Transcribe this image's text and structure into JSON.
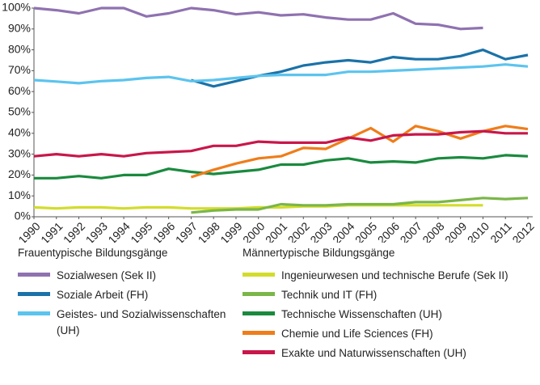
{
  "chart_data": {
    "type": "line",
    "x": [
      1990,
      1991,
      1992,
      1993,
      1994,
      1995,
      1996,
      1997,
      1998,
      1999,
      2000,
      2001,
      2002,
      2003,
      2004,
      2005,
      2006,
      2007,
      2008,
      2009,
      2010,
      2011,
      2012
    ],
    "xlim": [
      1990,
      2012
    ],
    "xticks": [
      1990,
      1991,
      1992,
      1993,
      1994,
      1995,
      1996,
      1997,
      1998,
      1999,
      2000,
      2001,
      2002,
      2003,
      2004,
      2005,
      2006,
      2007,
      2008,
      2009,
      2010,
      2011,
      2012
    ],
    "ylim": [
      0,
      100
    ],
    "yticks": [
      {
        "value": 0,
        "label": "0%"
      },
      {
        "value": 10,
        "label": "10%"
      },
      {
        "value": 20,
        "label": "20%"
      },
      {
        "value": 30,
        "label": "30%"
      },
      {
        "value": 40,
        "label": "40%"
      },
      {
        "value": 50,
        "label": "50%"
      },
      {
        "value": 60,
        "label": "60%"
      },
      {
        "value": 70,
        "label": "70%"
      },
      {
        "value": 80,
        "label": "80%"
      },
      {
        "value": 90,
        "label": "90%"
      },
      {
        "value": 100,
        "label": "100%"
      }
    ],
    "grid": false,
    "legend_groups": [
      "Frauentypische Bildungsgänge",
      "Männertypische Bildungsgänge"
    ],
    "series": [
      {
        "name": "Sozialwesen (Sek II)",
        "color": "#8f72b0",
        "values": [
          100,
          99,
          97.5,
          100,
          100,
          96,
          97.5,
          100,
          99,
          97,
          98,
          96.5,
          97,
          95.5,
          94.5,
          94.5,
          97.5,
          92.5,
          92,
          90,
          90.5,
          null,
          null
        ]
      },
      {
        "name": "Soziale Arbeit (FH)",
        "color": "#1b72a8",
        "values": [
          null,
          null,
          null,
          null,
          null,
          null,
          null,
          65.5,
          62.5,
          65,
          67.5,
          69.5,
          72.5,
          74,
          75,
          74,
          76.5,
          75.5,
          75.5,
          77,
          80,
          75.5,
          77.5
        ]
      },
      {
        "name": "Geistes- und Sozialwissenschaften (UH)",
        "color": "#5cc4ee",
        "values": [
          65.5,
          64.8,
          64,
          65,
          65.5,
          66.5,
          67,
          65,
          65.5,
          66.5,
          67.5,
          68,
          68,
          68,
          69.5,
          69.5,
          70,
          70.5,
          71,
          71.5,
          72,
          73,
          72
        ]
      },
      {
        "name": "Ingenieurwesen und technische Berufe (Sek II)",
        "color": "#d3dc2b",
        "values": [
          4.5,
          4,
          4.5,
          4.5,
          4,
          4.5,
          4.5,
          4,
          4,
          4,
          4.5,
          4.5,
          5,
          5,
          5.5,
          5.5,
          5.5,
          5.5,
          5.5,
          5.5,
          5.5,
          null,
          null
        ]
      },
      {
        "name": "Technik und IT (FH)",
        "color": "#7ab648",
        "values": [
          null,
          null,
          null,
          null,
          null,
          null,
          null,
          2,
          3,
          3.5,
          3.5,
          6,
          5.5,
          5.5,
          6,
          6,
          6,
          7,
          7,
          8,
          9,
          8.5,
          9
        ]
      },
      {
        "name": "Technische Wissenschaften (UH)",
        "color": "#1a8a3e",
        "values": [
          18.5,
          18.5,
          19.5,
          18.5,
          20,
          20,
          23,
          21.5,
          20.5,
          21.5,
          22.5,
          25,
          25,
          27,
          28,
          26,
          26.5,
          26,
          28,
          28.5,
          28,
          29.5,
          29
        ]
      },
      {
        "name": "Chemie und Life Sciences (FH)",
        "color": "#ef7d1a",
        "values": [
          null,
          null,
          null,
          null,
          null,
          null,
          null,
          19,
          22.5,
          25.5,
          28,
          29,
          33,
          32.5,
          37.5,
          42.5,
          36,
          43.5,
          41,
          37.5,
          41,
          43.5,
          42
        ]
      },
      {
        "name": "Exakte und Naturwissenschaften (UH)",
        "color": "#c8174a",
        "values": [
          29,
          30,
          29,
          30,
          29,
          30.5,
          31,
          31.5,
          34,
          34,
          36,
          35.5,
          35.5,
          35.5,
          38,
          36.5,
          39,
          39.5,
          39.5,
          40.5,
          41,
          40,
          40
        ]
      }
    ]
  }
}
